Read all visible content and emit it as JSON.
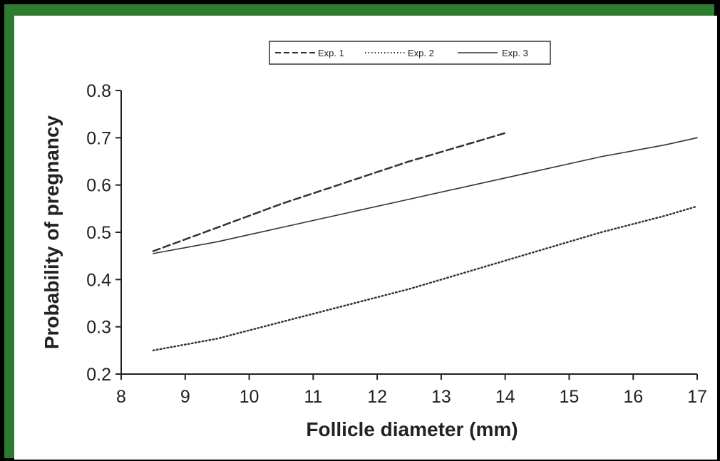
{
  "chart_data": {
    "type": "line",
    "title": "",
    "xlabel": "Follicle diameter (mm)",
    "ylabel": "Probability of pregnancy",
    "xlim": [
      8,
      17
    ],
    "ylim": [
      0.2,
      0.8
    ],
    "x_ticks": [
      "8",
      "9",
      "10",
      "11",
      "12",
      "13",
      "14",
      "15",
      "16",
      "17"
    ],
    "y_ticks": [
      "0.2",
      "0.3",
      "0.4",
      "0.5",
      "0.6",
      "0.7",
      "0.8"
    ],
    "grid": false,
    "legend_position": "top",
    "series": [
      {
        "name": "Exp. 1",
        "style": "dashed",
        "x": [
          8.5,
          9.5,
          10.5,
          11.5,
          12.5,
          13.5,
          14
        ],
        "y": [
          0.46,
          0.51,
          0.56,
          0.605,
          0.65,
          0.69,
          0.71
        ]
      },
      {
        "name": "Exp. 2",
        "style": "dotted",
        "x": [
          8.5,
          9.5,
          10.5,
          11.5,
          12.5,
          13.5,
          14.5,
          15.5,
          16.5,
          17
        ],
        "y": [
          0.25,
          0.275,
          0.31,
          0.345,
          0.38,
          0.42,
          0.46,
          0.5,
          0.535,
          0.555
        ]
      },
      {
        "name": "Exp. 3",
        "style": "solid",
        "x": [
          8.5,
          9.5,
          10.5,
          11.5,
          12.5,
          13.5,
          14.5,
          15.5,
          16.5,
          17
        ],
        "y": [
          0.455,
          0.48,
          0.51,
          0.54,
          0.57,
          0.6,
          0.63,
          0.66,
          0.685,
          0.7
        ]
      }
    ]
  },
  "colors": {
    "frame": "#000000",
    "border": "#2e7a2e",
    "background": "#ffffff",
    "line": "#333333",
    "text": "#222222"
  }
}
